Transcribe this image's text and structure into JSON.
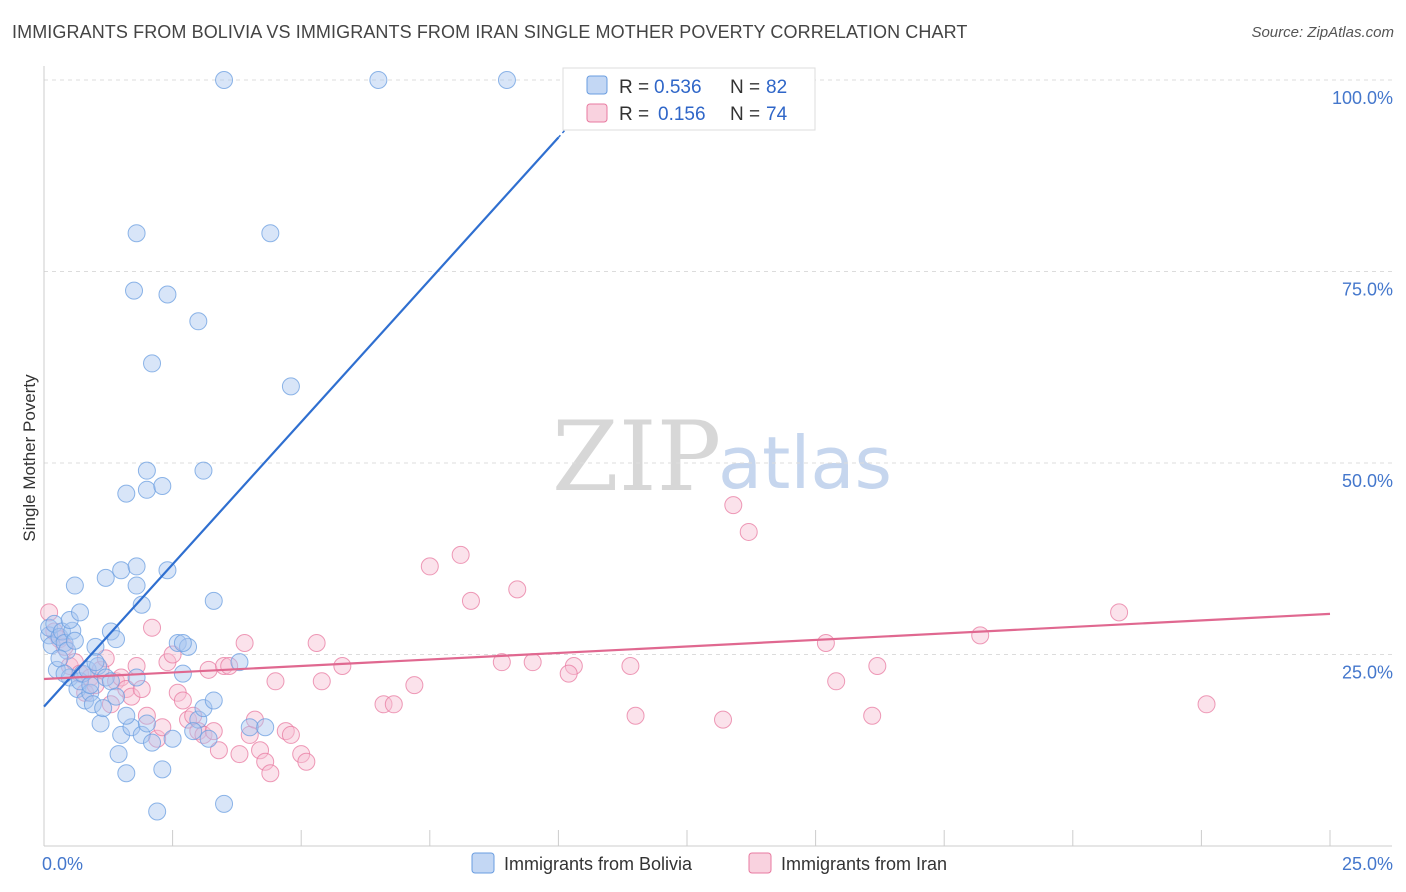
{
  "title": "IMMIGRANTS FROM BOLIVIA VS IMMIGRANTS FROM IRAN SINGLE MOTHER POVERTY CORRELATION CHART",
  "source": "Source: ZipAtlas.com",
  "watermark": {
    "zip": "ZIP",
    "atlas": "atlas"
  },
  "colors": {
    "bolivia": "#6a9de0",
    "bolivia_fill": "#a9c6f0",
    "iran": "#e87aa0",
    "iran_fill": "#f6bfd2",
    "blue_line": "#2f6fd0",
    "pink_line": "#e06890",
    "tick": "#4477cc"
  },
  "chart_data": {
    "type": "scatter",
    "title": "IMMIGRANTS FROM BOLIVIA VS IMMIGRANTS FROM IRAN SINGLE MOTHER POVERTY CORRELATION CHART",
    "xlabel": "",
    "ylabel": "Single Mother Poverty",
    "xlim": [
      0,
      25
    ],
    "ylim": [
      0,
      100
    ],
    "x_tick_labels": [
      "0.0%",
      "25.0%"
    ],
    "y_ticks": [
      25,
      50,
      75,
      100
    ],
    "y_tick_labels": [
      "25.0%",
      "50.0%",
      "75.0%",
      "100.0%"
    ],
    "grid": true,
    "legend_top": [
      {
        "r_label": "R =",
        "r_value": "0.536",
        "n_label": "N =",
        "n_value": "82"
      },
      {
        "r_label": "R =",
        "r_value": "0.156",
        "n_label": "N =",
        "n_value": "74"
      }
    ],
    "legend_bottom": [
      "Immigrants from Bolivia",
      "Immigrants from Iran"
    ],
    "series": [
      {
        "name": "Immigrants from Bolivia",
        "trend": {
          "x0": 0,
          "y0": 18.2,
          "x1": 10.0,
          "y1": 92.5
        },
        "points": [
          [
            0.1,
            27.5
          ],
          [
            0.1,
            28.5
          ],
          [
            0.15,
            26.2
          ],
          [
            0.2,
            29.0
          ],
          [
            0.25,
            23.0
          ],
          [
            0.3,
            27.3
          ],
          [
            0.35,
            28.0
          ],
          [
            0.4,
            26.5
          ],
          [
            0.45,
            25.5
          ],
          [
            0.5,
            22.0
          ],
          [
            0.55,
            28.1
          ],
          [
            0.6,
            26.8
          ],
          [
            0.65,
            20.5
          ],
          [
            0.7,
            21.5
          ],
          [
            0.75,
            22.5
          ],
          [
            0.8,
            19.0
          ],
          [
            0.85,
            23.0
          ],
          [
            0.9,
            20.0
          ],
          [
            0.95,
            18.5
          ],
          [
            1.0,
            26.0
          ],
          [
            1.05,
            23.5
          ],
          [
            1.1,
            16.0
          ],
          [
            1.15,
            18.0
          ],
          [
            1.2,
            22.0
          ],
          [
            1.3,
            21.5
          ],
          [
            1.4,
            19.5
          ],
          [
            1.45,
            12.0
          ],
          [
            1.5,
            14.5
          ],
          [
            1.6,
            9.5
          ],
          [
            1.7,
            15.5
          ],
          [
            1.8,
            22.0
          ],
          [
            1.9,
            14.5
          ],
          [
            2.0,
            16.0
          ],
          [
            2.1,
            13.5
          ],
          [
            2.2,
            4.5
          ],
          [
            2.3,
            10.0
          ],
          [
            2.5,
            14.0
          ],
          [
            2.6,
            26.5
          ],
          [
            2.7,
            22.5
          ],
          [
            2.8,
            26.0
          ],
          [
            3.0,
            16.5
          ],
          [
            3.1,
            18.0
          ],
          [
            3.2,
            14.0
          ],
          [
            3.3,
            19.0
          ],
          [
            3.5,
            5.5
          ],
          [
            3.8,
            24.0
          ],
          [
            4.0,
            15.5
          ],
          [
            4.3,
            15.5
          ],
          [
            0.6,
            34.0
          ],
          [
            1.2,
            35.0
          ],
          [
            1.3,
            28.0
          ],
          [
            1.5,
            36.0
          ],
          [
            1.8,
            34.0
          ],
          [
            1.9,
            31.5
          ],
          [
            2.4,
            36.0
          ],
          [
            3.3,
            32.0
          ],
          [
            1.8,
            36.5
          ],
          [
            1.6,
            46.0
          ],
          [
            2.0,
            49.0
          ],
          [
            2.0,
            46.5
          ],
          [
            2.3,
            47.0
          ],
          [
            3.1,
            49.0
          ],
          [
            2.1,
            63.0
          ],
          [
            1.8,
            80.0
          ],
          [
            2.4,
            72.0
          ],
          [
            1.75,
            72.5
          ],
          [
            3.0,
            68.5
          ],
          [
            4.4,
            80.0
          ],
          [
            4.8,
            60.0
          ],
          [
            3.5,
            100.0
          ],
          [
            6.5,
            100.0
          ],
          [
            9.0,
            100.0
          ],
          [
            0.5,
            29.5
          ],
          [
            1.0,
            24.0
          ],
          [
            1.4,
            27.0
          ],
          [
            0.3,
            24.5
          ],
          [
            0.7,
            30.5
          ],
          [
            0.9,
            21.0
          ],
          [
            1.6,
            17.0
          ],
          [
            2.7,
            26.5
          ],
          [
            2.9,
            15.0
          ],
          [
            0.4,
            22.5
          ]
        ]
      },
      {
        "name": "Immigrants from Iran",
        "trend": {
          "x0": 0,
          "y0": 21.8,
          "x1": 25,
          "y1": 30.3
        },
        "points": [
          [
            0.1,
            30.5
          ],
          [
            0.2,
            28.0
          ],
          [
            0.3,
            27.0
          ],
          [
            0.4,
            26.0
          ],
          [
            0.5,
            23.5
          ],
          [
            0.6,
            24.0
          ],
          [
            0.7,
            22.5
          ],
          [
            0.8,
            20.0
          ],
          [
            0.9,
            22.0
          ],
          [
            1.0,
            21.0
          ],
          [
            1.1,
            23.0
          ],
          [
            1.2,
            24.5
          ],
          [
            1.3,
            18.5
          ],
          [
            1.4,
            21.5
          ],
          [
            1.5,
            22.0
          ],
          [
            1.6,
            20.5
          ],
          [
            1.7,
            19.5
          ],
          [
            1.8,
            23.5
          ],
          [
            1.9,
            20.5
          ],
          [
            2.0,
            17.0
          ],
          [
            2.1,
            28.5
          ],
          [
            2.2,
            14.0
          ],
          [
            2.3,
            15.5
          ],
          [
            2.4,
            24.0
          ],
          [
            2.5,
            25.0
          ],
          [
            2.6,
            20.0
          ],
          [
            2.7,
            19.0
          ],
          [
            2.8,
            16.5
          ],
          [
            2.9,
            17.0
          ],
          [
            3.0,
            15.0
          ],
          [
            3.1,
            14.5
          ],
          [
            3.2,
            23.0
          ],
          [
            3.3,
            15.0
          ],
          [
            3.4,
            12.5
          ],
          [
            3.5,
            23.5
          ],
          [
            3.6,
            23.5
          ],
          [
            3.8,
            12.0
          ],
          [
            3.9,
            26.5
          ],
          [
            4.0,
            14.5
          ],
          [
            4.1,
            16.5
          ],
          [
            4.2,
            12.5
          ],
          [
            4.3,
            11.0
          ],
          [
            4.4,
            9.5
          ],
          [
            4.5,
            21.5
          ],
          [
            4.7,
            15.0
          ],
          [
            4.8,
            14.5
          ],
          [
            5.0,
            12.0
          ],
          [
            5.1,
            11.0
          ],
          [
            5.3,
            26.5
          ],
          [
            5.4,
            21.5
          ],
          [
            5.8,
            23.5
          ],
          [
            6.6,
            18.5
          ],
          [
            6.8,
            18.5
          ],
          [
            7.2,
            21.0
          ],
          [
            7.5,
            36.5
          ],
          [
            8.1,
            38.0
          ],
          [
            8.3,
            32.0
          ],
          [
            8.9,
            24.0
          ],
          [
            9.2,
            33.5
          ],
          [
            9.5,
            24.0
          ],
          [
            10.3,
            23.5
          ],
          [
            10.2,
            22.5
          ],
          [
            11.4,
            23.5
          ],
          [
            11.5,
            17.0
          ],
          [
            13.2,
            16.5
          ],
          [
            13.7,
            41.0
          ],
          [
            13.4,
            44.5
          ],
          [
            15.2,
            26.5
          ],
          [
            15.4,
            21.5
          ],
          [
            16.1,
            17.0
          ],
          [
            16.2,
            23.5
          ],
          [
            18.2,
            27.5
          ],
          [
            20.9,
            30.5
          ],
          [
            22.6,
            18.5
          ]
        ]
      }
    ]
  }
}
